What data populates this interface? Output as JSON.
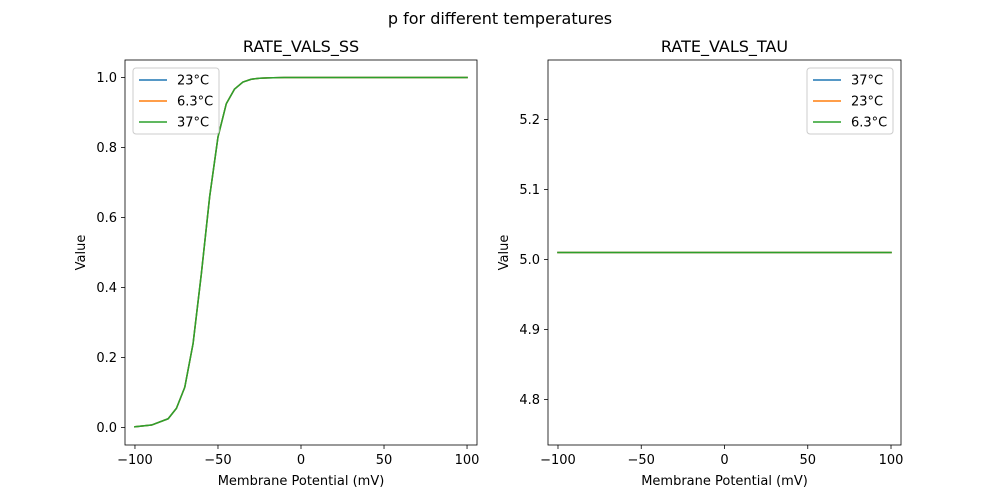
{
  "figure": {
    "suptitle": "p for different temperatures"
  },
  "colors": {
    "blue": "#1f77b4",
    "orange": "#ff7f0e",
    "green": "#2ca02c"
  },
  "chart_data": [
    {
      "type": "line",
      "title": "RATE_VALS_SS",
      "xlabel": "Membrane Potential (mV)",
      "ylabel": "Value",
      "xlim": [
        -106,
        106
      ],
      "ylim": [
        -0.05,
        1.05
      ],
      "xticks": [
        -100,
        -50,
        0,
        50,
        100
      ],
      "xtick_labels": [
        "−100",
        "−50",
        "0",
        "50",
        "100"
      ],
      "yticks": [
        0.0,
        0.2,
        0.4,
        0.6,
        0.8,
        1.0
      ],
      "ytick_labels": [
        "0.0",
        "0.2",
        "0.4",
        "0.6",
        "0.8",
        "1.0"
      ],
      "legend_position": "upper-left",
      "x": [
        -100,
        -90,
        -80,
        -75,
        -70,
        -65,
        -60,
        -55,
        -50,
        -45,
        -40,
        -35,
        -30,
        -25,
        -20,
        -10,
        0,
        25,
        50,
        75,
        100
      ],
      "series": [
        {
          "name": "23°C",
          "color": "#1f77b4",
          "values": [
            0.002,
            0.007,
            0.025,
            0.055,
            0.115,
            0.24,
            0.44,
            0.66,
            0.83,
            0.925,
            0.967,
            0.987,
            0.995,
            0.998,
            0.999,
            1.0,
            1.0,
            1.0,
            1.0,
            1.0,
            1.0
          ]
        },
        {
          "name": "6.3°C",
          "color": "#ff7f0e",
          "values": [
            0.002,
            0.007,
            0.025,
            0.055,
            0.115,
            0.24,
            0.44,
            0.66,
            0.83,
            0.925,
            0.967,
            0.987,
            0.995,
            0.998,
            0.999,
            1.0,
            1.0,
            1.0,
            1.0,
            1.0,
            1.0
          ]
        },
        {
          "name": "37°C",
          "color": "#2ca02c",
          "values": [
            0.002,
            0.007,
            0.025,
            0.055,
            0.115,
            0.24,
            0.44,
            0.66,
            0.83,
            0.925,
            0.967,
            0.987,
            0.995,
            0.998,
            0.999,
            1.0,
            1.0,
            1.0,
            1.0,
            1.0,
            1.0
          ]
        }
      ]
    },
    {
      "type": "line",
      "title": "RATE_VALS_TAU",
      "xlabel": "Membrane Potential (mV)",
      "ylabel": "Value",
      "xlim": [
        -106,
        106
      ],
      "ylim": [
        4.735,
        5.285
      ],
      "xticks": [
        -100,
        -50,
        0,
        50,
        100
      ],
      "xtick_labels": [
        "−100",
        "−50",
        "0",
        "50",
        "100"
      ],
      "yticks": [
        4.8,
        4.9,
        5.0,
        5.1,
        5.2
      ],
      "ytick_labels": [
        "4.8",
        "4.9",
        "5.0",
        "5.1",
        "5.2"
      ],
      "legend_position": "upper-right",
      "x": [
        -100,
        100
      ],
      "series": [
        {
          "name": "37°C",
          "color": "#1f77b4",
          "values": [
            5.01,
            5.01
          ]
        },
        {
          "name": "23°C",
          "color": "#ff7f0e",
          "values": [
            5.01,
            5.01
          ]
        },
        {
          "name": "6.3°C",
          "color": "#2ca02c",
          "values": [
            5.01,
            5.01
          ]
        }
      ]
    }
  ]
}
